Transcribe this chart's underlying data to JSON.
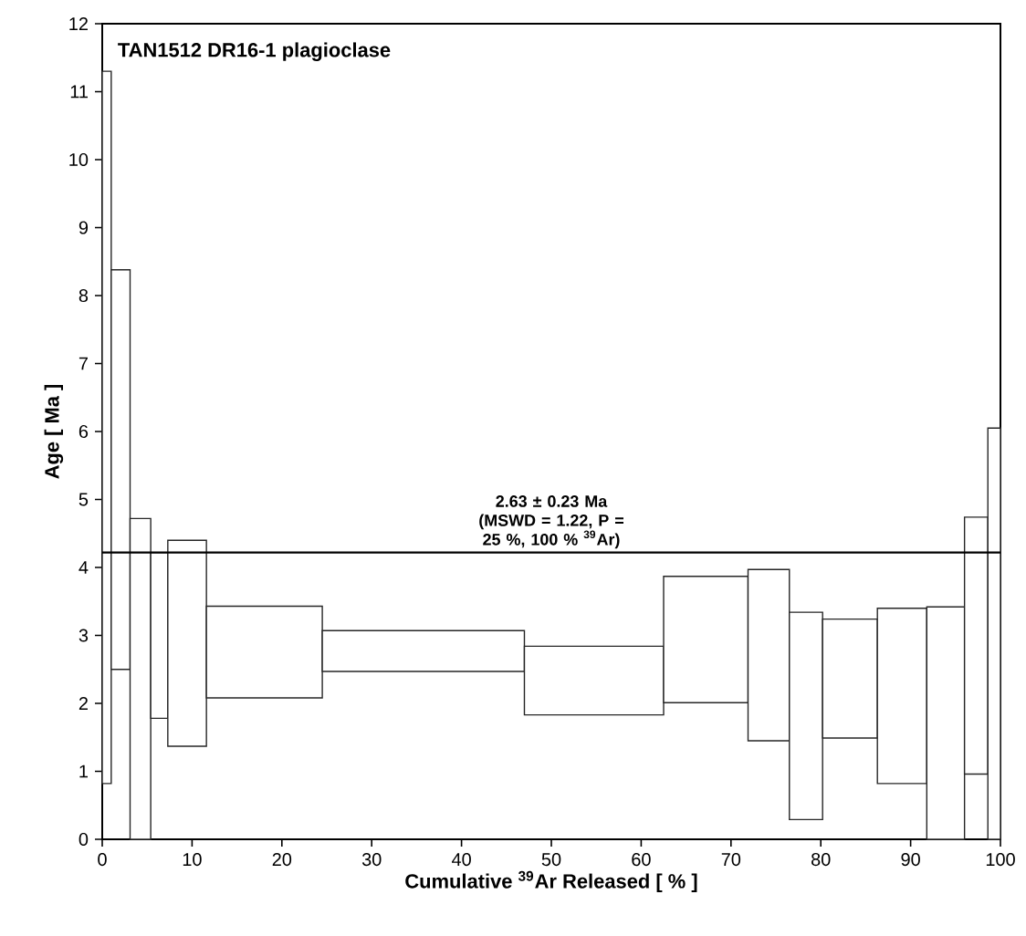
{
  "chart_data": {
    "type": "histogram",
    "title": "TAN1512 DR16-1 plagioclase",
    "xlabel": "Cumulative $^{39}$Ar Released [ % ]",
    "ylabel": "Age [ Ma ]",
    "bins": [
      0,
      1.0,
      3.1,
      5.4,
      7.3,
      11.6,
      24.5,
      47.0,
      62.5,
      71.9,
      76.5,
      80.2,
      86.3,
      91.8,
      96.0,
      98.6,
      100
    ],
    "base": [
      0.82,
      2.5,
      0,
      1.78,
      1.37,
      2.08,
      2.47,
      1.83,
      2.01,
      1.45,
      0.29,
      1.49,
      0.82,
      0,
      0.96,
      0
    ],
    "values": [
      10.48,
      5.88,
      4.72,
      2.44,
      3.03,
      1.35,
      0.6,
      1.01,
      1.86,
      2.52,
      3.05,
      1.75,
      2.58,
      3.42,
      3.78,
      6.05
    ],
    "color": "#ffffff",
    "xlim": [
      0,
      100
    ],
    "xticks": [
      0,
      10,
      20,
      30,
      40,
      50,
      60,
      70,
      80,
      90,
      100
    ],
    "ylim": [
      0,
      12
    ],
    "yticks": [
      0,
      1,
      2,
      3,
      4,
      5,
      6,
      7,
      8,
      9,
      10,
      11,
      12
    ],
    "ref_lines": [
      {
        "axis": "y",
        "value": 4.22,
        "color": "#000000"
      }
    ],
    "annotations": [
      "2.63 ± 0.23 Ma (MSWD = 1.22, P = 25 %, 100 % $^{39}$Ar)"
    ],
    "grid": false
  }
}
